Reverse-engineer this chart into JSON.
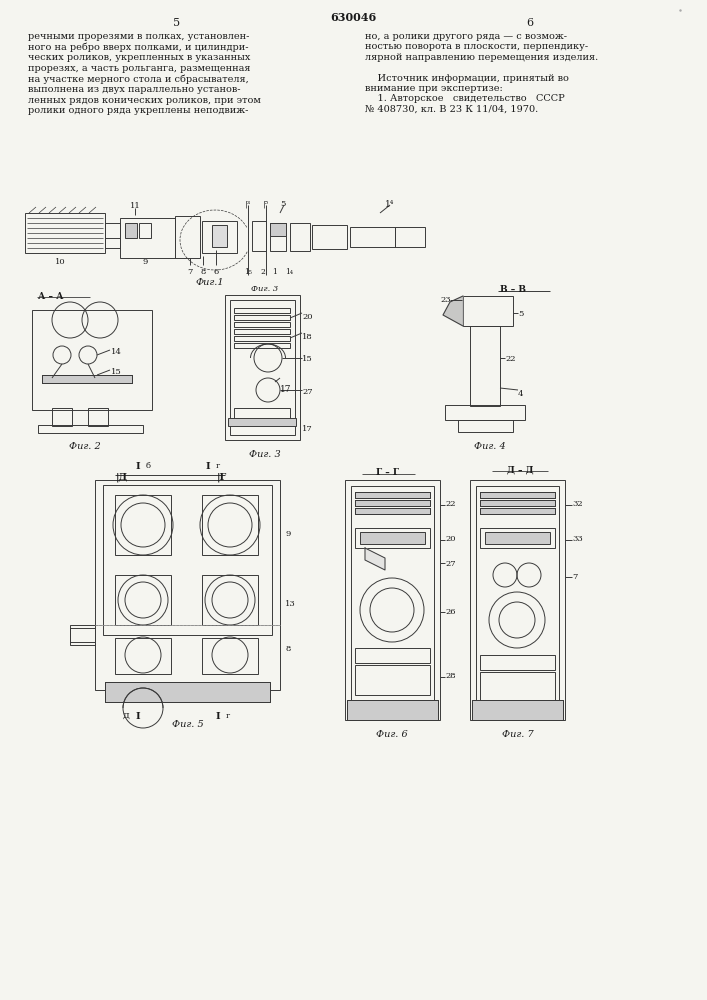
{
  "patent_number": "630046",
  "page_left": "5",
  "page_right": "6",
  "bg": "#f5f5f0",
  "lc": "#3a3a3a",
  "lw": 0.7,
  "figsize": [
    7.07,
    10.0
  ],
  "dpi": 100,
  "text_left": "речными прорезями в полках, установлен-\nного на ребро вверх полками, и цилиндри-\nческих роликов, укрепленных в указанных\nпрорезях, а часть рольганга, размещенная\nна участке мерного стола и сбрасывателя,\nвыполнена из двух параллельно установ-\nленных рядов конических роликов, при этом\nролики одного ряда укреплены неподвиж-",
  "text_right": "но, а ролики другого ряда — с возмож-\nностью поворота в плоскости, перпендику-\nлярной направлению перемещения изделия.\n\n    Источник информации, принятый во\nвнимание при экспертизе:\n    1. Авторское   свидетельство   СССР\n№ 408730, кл. В 23 К 11/04, 1970."
}
